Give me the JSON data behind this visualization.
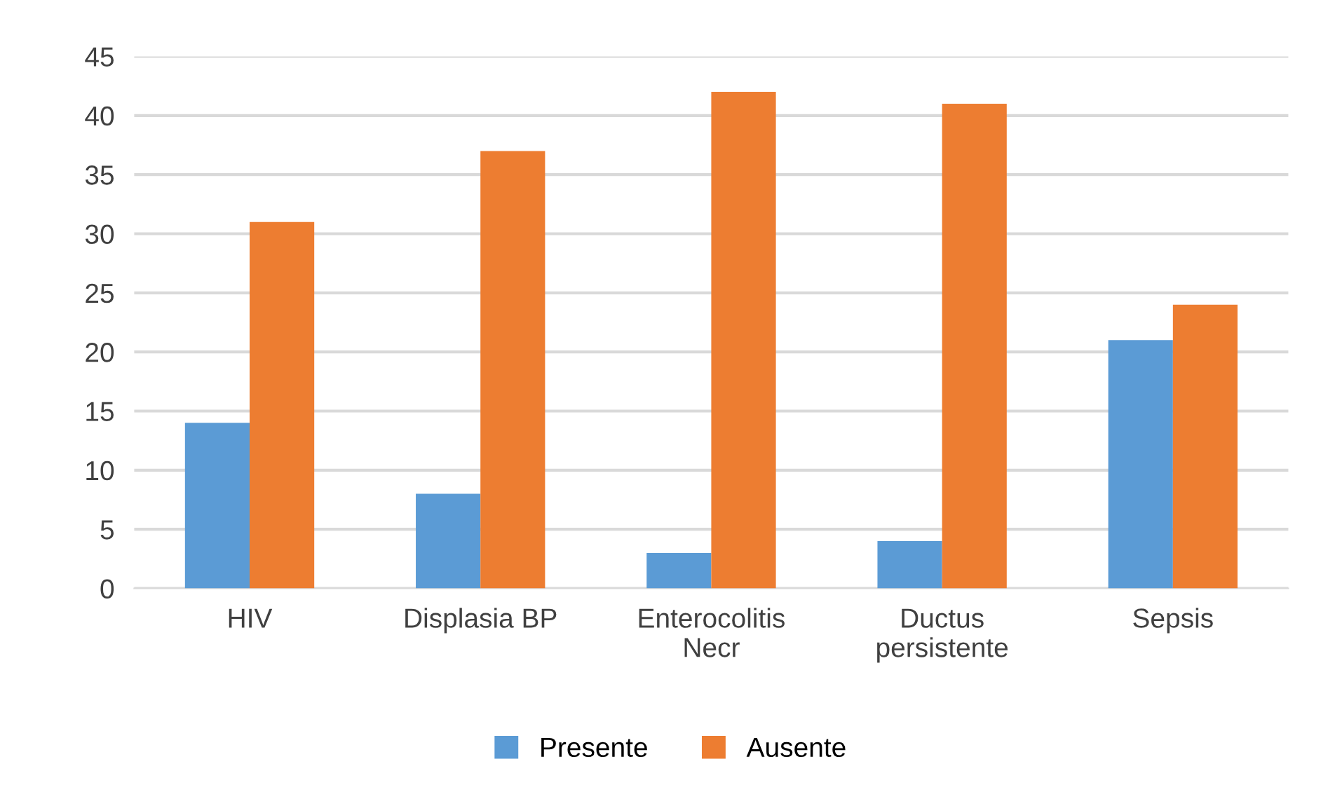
{
  "chart_data": {
    "type": "bar",
    "categories": [
      "HIV",
      "Displasia BP",
      "Enterocolitis\nNecr",
      "Ductus\npersistente",
      "Sepsis"
    ],
    "series": [
      {
        "name": "Presente",
        "color": "#5b9bd5",
        "values": [
          14,
          8,
          3,
          4,
          21
        ]
      },
      {
        "name": "Ausente",
        "color": "#ed7d31",
        "values": [
          31,
          37,
          42,
          41,
          24
        ]
      }
    ],
    "ylim": [
      0,
      45
    ],
    "yticks": [
      0,
      5,
      10,
      15,
      20,
      25,
      30,
      35,
      40,
      45
    ],
    "grid": "y",
    "legend": "bottom"
  }
}
